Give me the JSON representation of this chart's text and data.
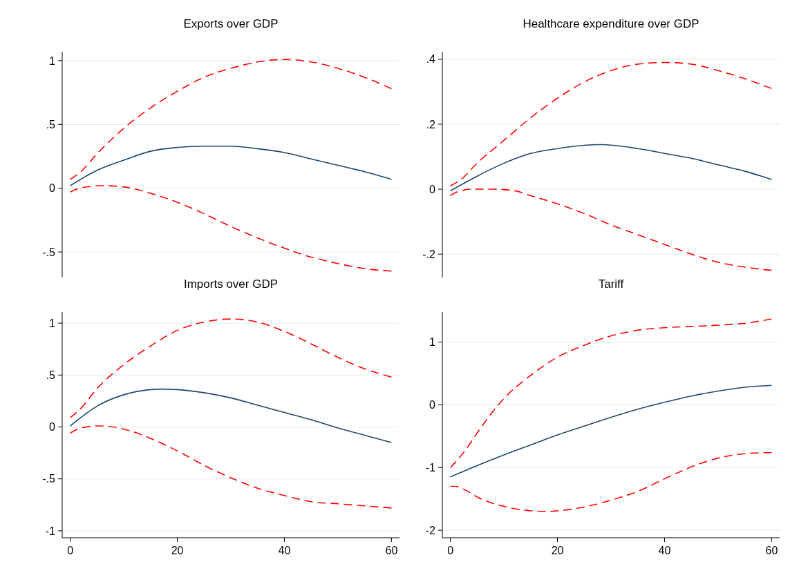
{
  "chart_data": [
    {
      "type": "line",
      "title": "Exports over GDP",
      "xlim": [
        -1.5,
        61.5
      ],
      "ylim": [
        -0.7,
        1.07
      ],
      "yticks": [
        {
          "value": -0.5,
          "label": "-.5"
        },
        0,
        {
          "value": 0.5,
          "label": ".5"
        },
        1
      ],
      "grid": "y",
      "tick_labels": "y",
      "series": [
        {
          "color": "#1a476f",
          "line_style": "solid",
          "x": [
            0,
            5,
            10,
            15,
            20,
            25,
            30,
            35,
            40,
            45,
            50,
            55,
            60
          ],
          "values": [
            0.02,
            0.14,
            0.22,
            0.29,
            0.32,
            0.33,
            0.33,
            0.31,
            0.28,
            0.23,
            0.18,
            0.13,
            0.07
          ]
        },
        {
          "color": "#ff0000",
          "line_style": "dashed",
          "x": [
            0,
            2,
            5,
            10,
            15,
            20,
            25,
            30,
            35,
            40,
            45,
            50,
            55,
            60
          ],
          "values": [
            0.07,
            0.13,
            0.27,
            0.47,
            0.63,
            0.76,
            0.87,
            0.94,
            0.99,
            1.01,
            0.99,
            0.94,
            0.87,
            0.78
          ]
        },
        {
          "color": "#ff0000",
          "line_style": "dashed",
          "x": [
            0,
            1,
            3,
            6,
            10,
            15,
            20,
            25,
            30,
            35,
            40,
            45,
            50,
            55,
            60
          ],
          "values": [
            -0.03,
            -0.01,
            0.01,
            0.02,
            0.01,
            -0.04,
            -0.11,
            -0.2,
            -0.3,
            -0.39,
            -0.47,
            -0.54,
            -0.59,
            -0.63,
            -0.65
          ]
        }
      ]
    },
    {
      "type": "line",
      "title": "Healthcare expenditure over GDP",
      "xlim": [
        -1.5,
        61.5
      ],
      "ylim": [
        -0.272,
        0.423
      ],
      "yticks": [
        {
          "value": -0.2,
          "label": "-.2"
        },
        0,
        {
          "value": 0.2,
          "label": ".2"
        },
        {
          "value": 0.4,
          "label": ".4"
        }
      ],
      "grid": "y",
      "tick_labels": "y",
      "series": [
        {
          "color": "#1a476f",
          "line_style": "solid",
          "x": [
            0,
            5,
            10,
            15,
            20,
            25,
            28,
            35,
            40,
            45,
            50,
            55,
            60
          ],
          "values": [
            -0.005,
            0.04,
            0.08,
            0.11,
            0.125,
            0.135,
            0.137,
            0.125,
            0.11,
            0.095,
            0.075,
            0.055,
            0.03
          ]
        },
        {
          "color": "#ff0000",
          "line_style": "dashed",
          "x": [
            0,
            2,
            5,
            10,
            15,
            20,
            25,
            30,
            35,
            40,
            45,
            50,
            55,
            60
          ],
          "values": [
            0.01,
            0.03,
            0.08,
            0.15,
            0.22,
            0.28,
            0.33,
            0.365,
            0.385,
            0.39,
            0.385,
            0.365,
            0.34,
            0.31
          ]
        },
        {
          "color": "#ff0000",
          "line_style": "dashed",
          "x": [
            0,
            1,
            4,
            8,
            12,
            15,
            20,
            25,
            30,
            35,
            40,
            45,
            50,
            55,
            60
          ],
          "values": [
            -0.02,
            -0.01,
            0,
            0,
            -0.005,
            -0.02,
            -0.045,
            -0.075,
            -0.11,
            -0.14,
            -0.17,
            -0.2,
            -0.225,
            -0.24,
            -0.25
          ]
        }
      ]
    },
    {
      "type": "line",
      "title": "Imports over GDP",
      "xlim": [
        -1.5,
        61.5
      ],
      "ylim": [
        -1.067,
        1.107
      ],
      "xticks": [
        0,
        20,
        40,
        60
      ],
      "yticks": [
        -1,
        {
          "value": -0.5,
          "label": "-.5"
        },
        0,
        {
          "value": 0.5,
          "label": ".5"
        },
        1
      ],
      "grid": "y",
      "series": [
        {
          "color": "#1a476f",
          "line_style": "solid",
          "x": [
            0,
            3,
            5,
            10,
            15,
            17,
            20,
            25,
            30,
            35,
            40,
            45,
            50,
            55,
            60
          ],
          "values": [
            0.01,
            0.13,
            0.2,
            0.31,
            0.36,
            0.365,
            0.36,
            0.33,
            0.28,
            0.21,
            0.14,
            0.07,
            -0.01,
            -0.08,
            -0.15
          ]
        },
        {
          "color": "#ff0000",
          "line_style": "dashed",
          "x": [
            0,
            2,
            5,
            10,
            15,
            20,
            25,
            30,
            35,
            40,
            45,
            50,
            55,
            60
          ],
          "values": [
            0.09,
            0.18,
            0.37,
            0.6,
            0.78,
            0.93,
            1.01,
            1.04,
            1.01,
            0.92,
            0.8,
            0.67,
            0.56,
            0.48
          ]
        },
        {
          "color": "#ff0000",
          "line_style": "dashed",
          "x": [
            0,
            1,
            3,
            5,
            8,
            12,
            15,
            20,
            25,
            30,
            35,
            40,
            45,
            50,
            55,
            60
          ],
          "values": [
            -0.06,
            -0.03,
            0,
            0.01,
            0,
            -0.05,
            -0.11,
            -0.23,
            -0.37,
            -0.49,
            -0.59,
            -0.66,
            -0.72,
            -0.74,
            -0.76,
            -0.78
          ]
        }
      ]
    },
    {
      "type": "line",
      "title": "Tariff",
      "xlim": [
        -1.5,
        61.5
      ],
      "ylim": [
        -2.12,
        1.48
      ],
      "xticks": [
        0,
        20,
        40,
        60
      ],
      "yticks": [
        -2,
        -1,
        0,
        1
      ],
      "grid": "y",
      "series": [
        {
          "color": "#1a476f",
          "line_style": "solid",
          "x": [
            0,
            5,
            10,
            15,
            20,
            25,
            30,
            35,
            40,
            45,
            50,
            55,
            60
          ],
          "values": [
            -1.15,
            -0.97,
            -0.8,
            -0.64,
            -0.48,
            -0.34,
            -0.2,
            -0.07,
            0.04,
            0.14,
            0.22,
            0.28,
            0.31
          ]
        },
        {
          "color": "#ff0000",
          "line_style": "dashed",
          "x": [
            0,
            1,
            3,
            5,
            8,
            10,
            15,
            20,
            25,
            30,
            35,
            40,
            45,
            50,
            55,
            60
          ],
          "values": [
            -1,
            -0.91,
            -0.7,
            -0.45,
            -0.1,
            0.1,
            0.47,
            0.76,
            0.95,
            1.1,
            1.19,
            1.23,
            1.25,
            1.27,
            1.3,
            1.37
          ]
        },
        {
          "color": "#ff0000",
          "line_style": "dashed",
          "x": [
            0,
            1,
            3,
            5,
            10,
            15,
            18,
            20,
            25,
            30,
            35,
            40,
            45,
            50,
            55,
            60
          ],
          "values": [
            -1.3,
            -1.3,
            -1.37,
            -1.47,
            -1.62,
            -1.69,
            -1.7,
            -1.69,
            -1.63,
            -1.52,
            -1.38,
            -1.18,
            -0.99,
            -0.85,
            -0.78,
            -0.76
          ]
        }
      ]
    }
  ]
}
